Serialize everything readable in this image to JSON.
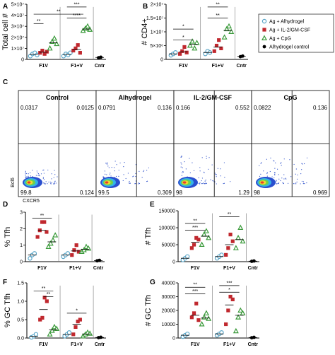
{
  "legend": [
    {
      "label": "Ag + Alhydrogel",
      "color": "#5aa6c8",
      "shape": "circle"
    },
    {
      "label": "Ag + IL-2/GM-CSF",
      "color": "#c0282e",
      "shape": "square"
    },
    {
      "label": "Ag + CpG",
      "color": "#3a9a3a",
      "shape": "triangle"
    },
    {
      "label": "Alhydrogel control",
      "color": "#000000",
      "shape": "circle-filled"
    }
  ],
  "flow": {
    "letter": "C",
    "xlabel": "CXCR5",
    "ylabel": "Bcl6",
    "panels": [
      {
        "title": "Control",
        "q": [
          "0.0317",
          "0.0125",
          "99.8",
          "0.124"
        ]
      },
      {
        "title": "Alhydrogel",
        "q": [
          "0.0791",
          "0.136",
          "99.5",
          "0.309"
        ]
      },
      {
        "title": "IL-2/GM-CSF",
        "q": [
          "0.166",
          "0.552",
          "98",
          "1.29"
        ]
      },
      {
        "title": "CpG",
        "q": [
          "0.0822",
          "0.136",
          "98",
          "0.969"
        ]
      }
    ]
  },
  "chart_data": [
    {
      "id": "A",
      "type": "scatter",
      "title": "",
      "ylabel": "Total cell #",
      "ylim": [
        0,
        50000000.0
      ],
      "yticks": [
        0,
        10000000.0,
        20000000.0,
        30000000.0,
        40000000.0,
        50000000.0
      ],
      "ytick_labels": [
        "0",
        "1×10⁷",
        "2×10⁷",
        "3×10⁷",
        "4×10⁷",
        "5×10⁷"
      ],
      "groups": [
        "F1V",
        "F1+V",
        "Cntr"
      ],
      "series": [
        {
          "group": "F1V",
          "shape": "circle",
          "values": [
            3000000.0,
            5000000.0,
            6000000.0,
            4000000.0
          ]
        },
        {
          "group": "F1V",
          "shape": "square",
          "values": [
            6000000.0,
            8000000.0,
            5000000.0,
            7000000.0
          ]
        },
        {
          "group": "F1V",
          "shape": "triangle",
          "values": [
            10000000.0,
            16000000.0,
            19000000.0,
            14000000.0
          ]
        },
        {
          "group": "F1+V",
          "shape": "circle",
          "values": [
            3000000.0,
            5000000.0,
            4000000.0,
            6000000.0
          ]
        },
        {
          "group": "F1+V",
          "shape": "square",
          "values": [
            8000000.0,
            10000000.0,
            13000000.0,
            6000000.0
          ]
        },
        {
          "group": "F1+V",
          "shape": "triangle",
          "values": [
            26000000.0,
            28000000.0,
            30000000.0,
            27000000.0
          ]
        },
        {
          "group": "Cntr",
          "shape": "circle-filled",
          "values": [
            1500000.0,
            2000000.0
          ]
        }
      ],
      "sig": [
        [
          "**"
        ],
        [
          "**"
        ],
        [
          "***"
        ],
        [
          "****"
        ]
      ]
    },
    {
      "id": "B",
      "type": "scatter",
      "title": "",
      "ylabel": "# CD4+",
      "ylim": [
        0,
        20000000.0
      ],
      "yticks": [
        0,
        5000000.0,
        10000000.0,
        15000000.0,
        20000000.0
      ],
      "ytick_labels": [
        "0",
        "5×10⁶",
        "1×10⁷",
        "1.5×10⁷",
        "2×10⁷"
      ],
      "groups": [
        "F1V",
        "F1+V",
        "Cntr"
      ],
      "series": [
        {
          "group": "F1V",
          "shape": "circle",
          "values": [
            1500000.0,
            2000000.0,
            2500000.0
          ]
        },
        {
          "group": "F1V",
          "shape": "square",
          "values": [
            2000000.0,
            3000000.0,
            4500000.0,
            2500000.0
          ]
        },
        {
          "group": "F1V",
          "shape": "triangle",
          "values": [
            5000000.0,
            6500000.0,
            4000000.0,
            6000000.0
          ]
        },
        {
          "group": "F1+V",
          "shape": "circle",
          "values": [
            2000000.0,
            3000000.0,
            2500000.0
          ]
        },
        {
          "group": "F1+V",
          "shape": "square",
          "values": [
            3000000.0,
            5000000.0,
            7000000.0,
            4000000.0
          ]
        },
        {
          "group": "F1+V",
          "shape": "triangle",
          "values": [
            8000000.0,
            11000000.0,
            12000000.0,
            10000000.0
          ]
        },
        {
          "group": "Cntr",
          "shape": "circle-filled",
          "values": [
            1000000.0,
            1200000.0
          ]
        }
      ]
    },
    {
      "id": "D",
      "type": "scatter",
      "title": "",
      "ylabel": "% Tfh",
      "ylim": [
        0,
        3
      ],
      "yticks": [
        0,
        1,
        2,
        3
      ],
      "ytick_labels": [
        "0",
        "1",
        "2",
        "3"
      ],
      "groups": [
        "F1V",
        "F1+V",
        "Cntr"
      ],
      "series": [
        {
          "group": "F1V",
          "shape": "circle",
          "values": [
            0.2,
            0.4,
            0.5
          ]
        },
        {
          "group": "F1V",
          "shape": "square",
          "values": [
            1.5,
            1.9,
            2.4,
            2.4,
            1.8
          ]
        },
        {
          "group": "F1V",
          "shape": "triangle",
          "values": [
            0.9,
            1.1,
            1.3,
            1.6
          ]
        },
        {
          "group": "F1+V",
          "shape": "circle",
          "values": [
            0.3,
            0.4,
            0.5
          ]
        },
        {
          "group": "F1+V",
          "shape": "square",
          "values": [
            0.4,
            0.7,
            1.0,
            0.6
          ]
        },
        {
          "group": "F1+V",
          "shape": "triangle",
          "values": [
            0.6,
            0.7,
            0.9,
            0.8
          ]
        },
        {
          "group": "Cntr",
          "shape": "circle-filled",
          "values": [
            0.05,
            0.08
          ]
        }
      ]
    },
    {
      "id": "E",
      "type": "scatter",
      "title": "",
      "ylabel": "# Tfh",
      "ylim": [
        0,
        150000
      ],
      "yticks": [
        0,
        50000,
        100000,
        150000
      ],
      "ytick_labels": [
        "0",
        "50000",
        "100000",
        "150000"
      ],
      "groups": [
        "F1V",
        "F1+V",
        "Cntr"
      ],
      "series": [
        {
          "group": "F1V",
          "shape": "circle",
          "values": [
            5000,
            10000,
            15000
          ]
        },
        {
          "group": "F1V",
          "shape": "square",
          "values": [
            40000,
            50000,
            70000,
            65000
          ]
        },
        {
          "group": "F1V",
          "shape": "triangle",
          "values": [
            50000,
            80000,
            90000,
            70000
          ]
        },
        {
          "group": "F1+V",
          "shape": "circle",
          "values": [
            10000,
            15000,
            20000
          ]
        },
        {
          "group": "F1+V",
          "shape": "square",
          "values": [
            20000,
            40000,
            80000,
            60000
          ]
        },
        {
          "group": "F1+V",
          "shape": "triangle",
          "values": [
            40000,
            70000,
            100000,
            60000
          ]
        },
        {
          "group": "Cntr",
          "shape": "circle-filled",
          "values": [
            1000,
            2000
          ]
        }
      ]
    },
    {
      "id": "F",
      "type": "scatter",
      "title": "",
      "ylabel": "% GC Tfh",
      "ylim": [
        0,
        1.5
      ],
      "yticks": [
        0,
        0.5,
        1.0,
        1.5
      ],
      "ytick_labels": [
        "0.0",
        "0.5",
        "1.0",
        "1.5"
      ],
      "groups": [
        "F1V",
        "F1+V",
        "Cntr"
      ],
      "series": [
        {
          "group": "F1V",
          "shape": "circle",
          "values": [
            0.02,
            0.05,
            0.1
          ]
        },
        {
          "group": "F1V",
          "shape": "square",
          "values": [
            0.5,
            0.55,
            1.1,
            1.0
          ]
        },
        {
          "group": "F1V",
          "shape": "triangle",
          "values": [
            0.1,
            0.2,
            0.3,
            0.25
          ]
        },
        {
          "group": "F1+V",
          "shape": "circle",
          "values": [
            0.05,
            0.1,
            0.15
          ]
        },
        {
          "group": "F1+V",
          "shape": "square",
          "values": [
            0.1,
            0.3,
            0.45,
            0.5
          ]
        },
        {
          "group": "F1+V",
          "shape": "triangle",
          "values": [
            0.05,
            0.1,
            0.15,
            0.12
          ]
        },
        {
          "group": "Cntr",
          "shape": "circle-filled",
          "values": [
            0.01,
            0.02
          ]
        }
      ]
    },
    {
      "id": "G",
      "type": "scatter",
      "title": "",
      "ylabel": "# GC Tfh",
      "ylim": [
        0,
        40000
      ],
      "yticks": [
        0,
        10000,
        20000,
        30000,
        40000
      ],
      "ytick_labels": [
        "0",
        "10000",
        "20000",
        "30000",
        "40000"
      ],
      "groups": [
        "F1V",
        "F1+V",
        "Cntr"
      ],
      "series": [
        {
          "group": "F1V",
          "shape": "circle",
          "values": [
            1000,
            2000,
            3000
          ]
        },
        {
          "group": "F1V",
          "shape": "square",
          "values": [
            15000,
            18000,
            25000,
            13000
          ]
        },
        {
          "group": "F1V",
          "shape": "triangle",
          "values": [
            10000,
            15000,
            18000,
            14000
          ]
        },
        {
          "group": "F1+V",
          "shape": "circle",
          "values": [
            2000,
            3000,
            4000
          ]
        },
        {
          "group": "F1+V",
          "shape": "square",
          "values": [
            10000,
            20000,
            30000,
            28000
          ]
        },
        {
          "group": "F1+V",
          "shape": "triangle",
          "values": [
            5000,
            15000,
            20000,
            18000
          ]
        },
        {
          "group": "Cntr",
          "shape": "circle-filled",
          "values": [
            200,
            500
          ]
        }
      ]
    }
  ]
}
